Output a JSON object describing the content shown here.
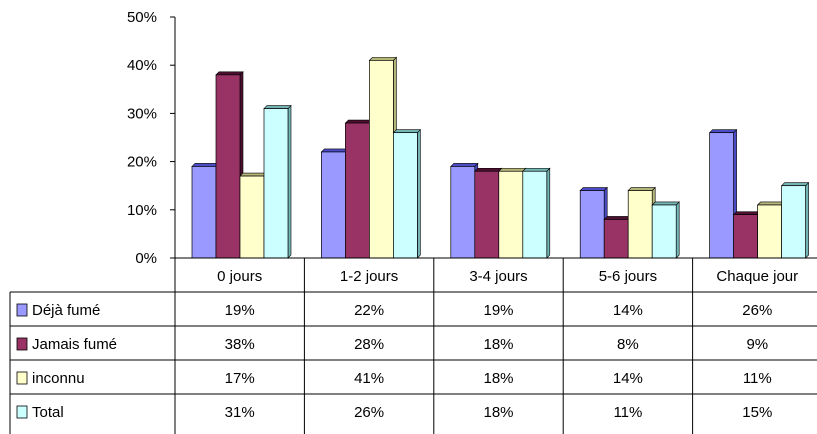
{
  "chart_data": {
    "type": "bar",
    "categories": [
      "0 jours",
      "1-2 jours",
      "3-4 jours",
      "5-6 jours",
      "Chaque jour"
    ],
    "series": [
      {
        "name": "Déjà fumé",
        "values": [
          19,
          22,
          19,
          14,
          26
        ],
        "labels": [
          "19%",
          "22%",
          "19%",
          "14%",
          "26%"
        ],
        "color": "#9999ff",
        "shade": "#4b4bc8"
      },
      {
        "name": "Jamais fumé",
        "values": [
          38,
          28,
          18,
          8,
          9
        ],
        "labels": [
          "38%",
          "28%",
          "18%",
          "8%",
          "9%"
        ],
        "color": "#993366",
        "shade": "#4d1030"
      },
      {
        "name": "inconnu",
        "values": [
          17,
          41,
          18,
          14,
          11
        ],
        "labels": [
          "17%",
          "41%",
          "18%",
          "14%",
          "11%"
        ],
        "color": "#ffffcc",
        "shade": "#b5b57a"
      },
      {
        "name": "Total",
        "values": [
          31,
          26,
          18,
          11,
          15
        ],
        "labels": [
          "31%",
          "26%",
          "18%",
          "11%",
          "15%"
        ],
        "color": "#ccffff",
        "shade": "#73b5b5"
      }
    ],
    "ylim": [
      0,
      50
    ],
    "yticks": [
      "0%",
      "10%",
      "20%",
      "30%",
      "40%",
      "50%"
    ],
    "legend": "data-table-left",
    "grid": false
  }
}
